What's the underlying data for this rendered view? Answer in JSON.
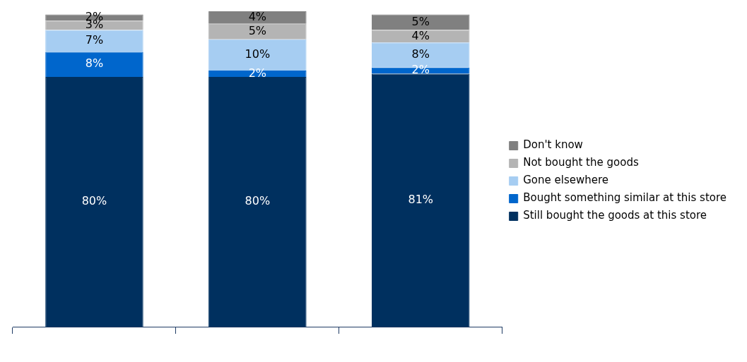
{
  "chart_data": {
    "type": "bar",
    "stacked": true,
    "categories": [
      null,
      null,
      null
    ],
    "series": [
      {
        "name": "Still bought the goods at this store",
        "color": "#00305f",
        "values": [
          80,
          80,
          81
        ],
        "value_labels": [
          "80%",
          "80%",
          "81%"
        ]
      },
      {
        "name": "Bought something similar at this store",
        "color": "#0066cc",
        "values": [
          8,
          2,
          2
        ],
        "value_labels": [
          "8%",
          "2%",
          "2%"
        ]
      },
      {
        "name": "Gone elsewhere",
        "color": "#a6cdf2",
        "values": [
          7,
          10,
          8
        ],
        "value_labels": [
          "7%",
          "10%",
          "8%"
        ]
      },
      {
        "name": "Not bought the goods",
        "color": "#b4b4b4",
        "values": [
          3,
          5,
          4
        ],
        "value_labels": [
          "3%",
          "5%",
          "4%"
        ]
      },
      {
        "name": "Don't know",
        "color": "#808080",
        "values": [
          2,
          4,
          5
        ],
        "value_labels": [
          "2%",
          "4%",
          "5%"
        ]
      }
    ],
    "legend": "right",
    "grid": false
  }
}
